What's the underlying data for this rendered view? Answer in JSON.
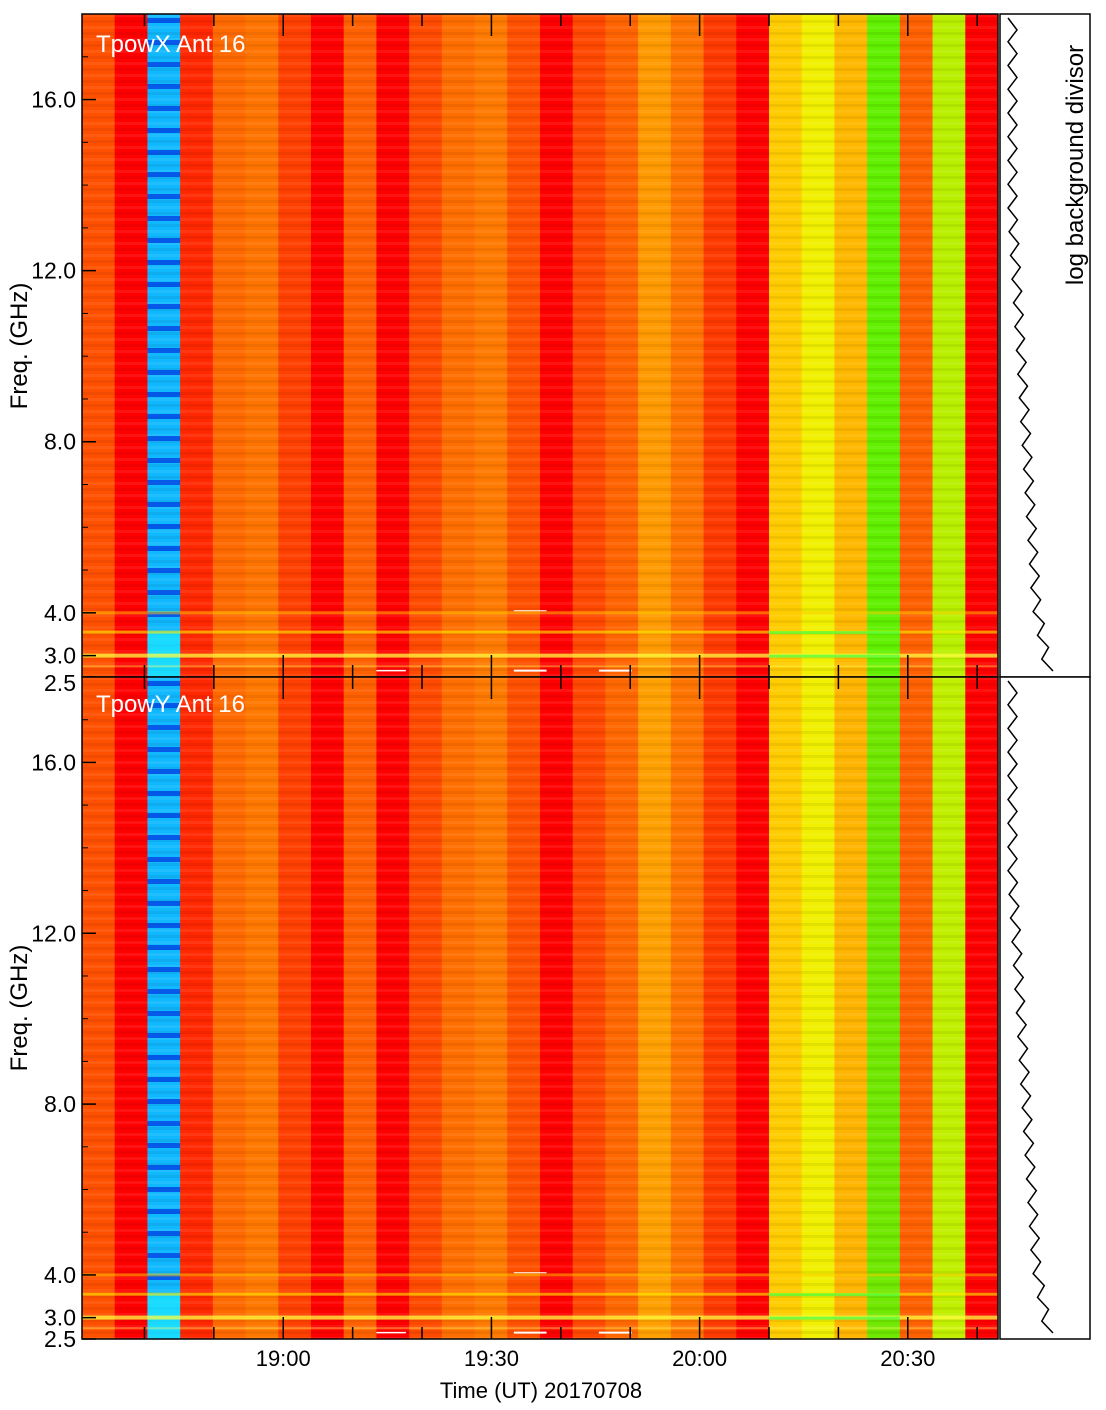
{
  "chart_data": [
    {
      "type": "heatmap",
      "panel_label": "TpowX Ant 16",
      "xlabel": "Time (UT) 20170708",
      "ylabel": "Freq. (GHz)",
      "xlim": [
        "18:31",
        "20:43"
      ],
      "ylim": [
        2.5,
        18.0
      ],
      "x_tick_labels": [
        "19:00",
        "19:30",
        "20:00",
        "20:30"
      ],
      "y_tick_labels": [
        "2.5",
        "3.0",
        "4.0",
        "8.0",
        "12.0",
        "16.0"
      ],
      "y_tick_values": [
        2.5,
        3.0,
        4.0,
        8.0,
        12.0,
        16.0
      ],
      "time_columns": [
        "18:32",
        "18:37",
        "18:42",
        "18:47",
        "18:52",
        "18:56",
        "19:01",
        "19:06",
        "19:11",
        "19:16",
        "19:20",
        "19:25",
        "19:30",
        "19:35",
        "19:40",
        "19:45",
        "19:49",
        "19:54",
        "19:59",
        "20:04",
        "20:09",
        "20:13",
        "20:18",
        "20:23",
        "20:28",
        "20:33",
        "20:37",
        "20:42"
      ],
      "column_colors": [
        "#ff5000",
        "#ff0000",
        "#10b8ff",
        "#ff2800",
        "#ff6a00",
        "#ff7400",
        "#ff4000",
        "#ff0000",
        "#ff6000",
        "#ff0000",
        "#ff4a00",
        "#ff6e00",
        "#ff7a00",
        "#ff5000",
        "#ff0000",
        "#ff4800",
        "#ff6400",
        "#ff9a00",
        "#ff7400",
        "#ff3a00",
        "#ff0000",
        "#ffcc00",
        "#f0f000",
        "#ffb800",
        "#60f000",
        "#ff6000",
        "#b8f000",
        "#ff0000"
      ]
    },
    {
      "type": "heatmap",
      "panel_label": "TpowY Ant 16",
      "xlabel": "Time (UT) 20170708",
      "ylabel": "Freq. (GHz)",
      "xlim": [
        "18:31",
        "20:43"
      ],
      "ylim": [
        2.5,
        18.0
      ],
      "x_tick_labels": [
        "19:00",
        "19:30",
        "20:00",
        "20:30"
      ],
      "y_tick_labels": [
        "2.5",
        "3.0",
        "4.0",
        "8.0",
        "12.0",
        "16.0"
      ],
      "y_tick_values": [
        2.5,
        3.0,
        4.0,
        8.0,
        12.0,
        16.0
      ],
      "time_columns": [
        "18:32",
        "18:37",
        "18:42",
        "18:47",
        "18:52",
        "18:56",
        "19:01",
        "19:06",
        "19:11",
        "19:16",
        "19:20",
        "19:25",
        "19:30",
        "19:35",
        "19:40",
        "19:45",
        "19:49",
        "19:54",
        "19:59",
        "20:04",
        "20:09",
        "20:13",
        "20:18",
        "20:23",
        "20:28",
        "20:33",
        "20:37",
        "20:42"
      ],
      "column_colors": [
        "#ff5000",
        "#ff0000",
        "#10b8ff",
        "#ff2800",
        "#ff6a00",
        "#ff7800",
        "#ff4000",
        "#ff0000",
        "#ff6000",
        "#ff0000",
        "#ff4a00",
        "#ff6e00",
        "#ff7a00",
        "#ff5000",
        "#ff0000",
        "#ff4800",
        "#ff6800",
        "#ffa000",
        "#ff7400",
        "#ff3a00",
        "#ff0000",
        "#ffcc00",
        "#f0f000",
        "#ffb400",
        "#70e800",
        "#ff6000",
        "#c0f000",
        "#ff0000"
      ]
    },
    {
      "type": "line",
      "ylabel": "log background divisor"
    }
  ],
  "colors": {
    "blue_low": "#0040ff",
    "cyan": "#10c8ff",
    "red": "#ff0000",
    "orange": "#ff7a00",
    "yellow": "#ffff00",
    "green": "#40ff00"
  }
}
